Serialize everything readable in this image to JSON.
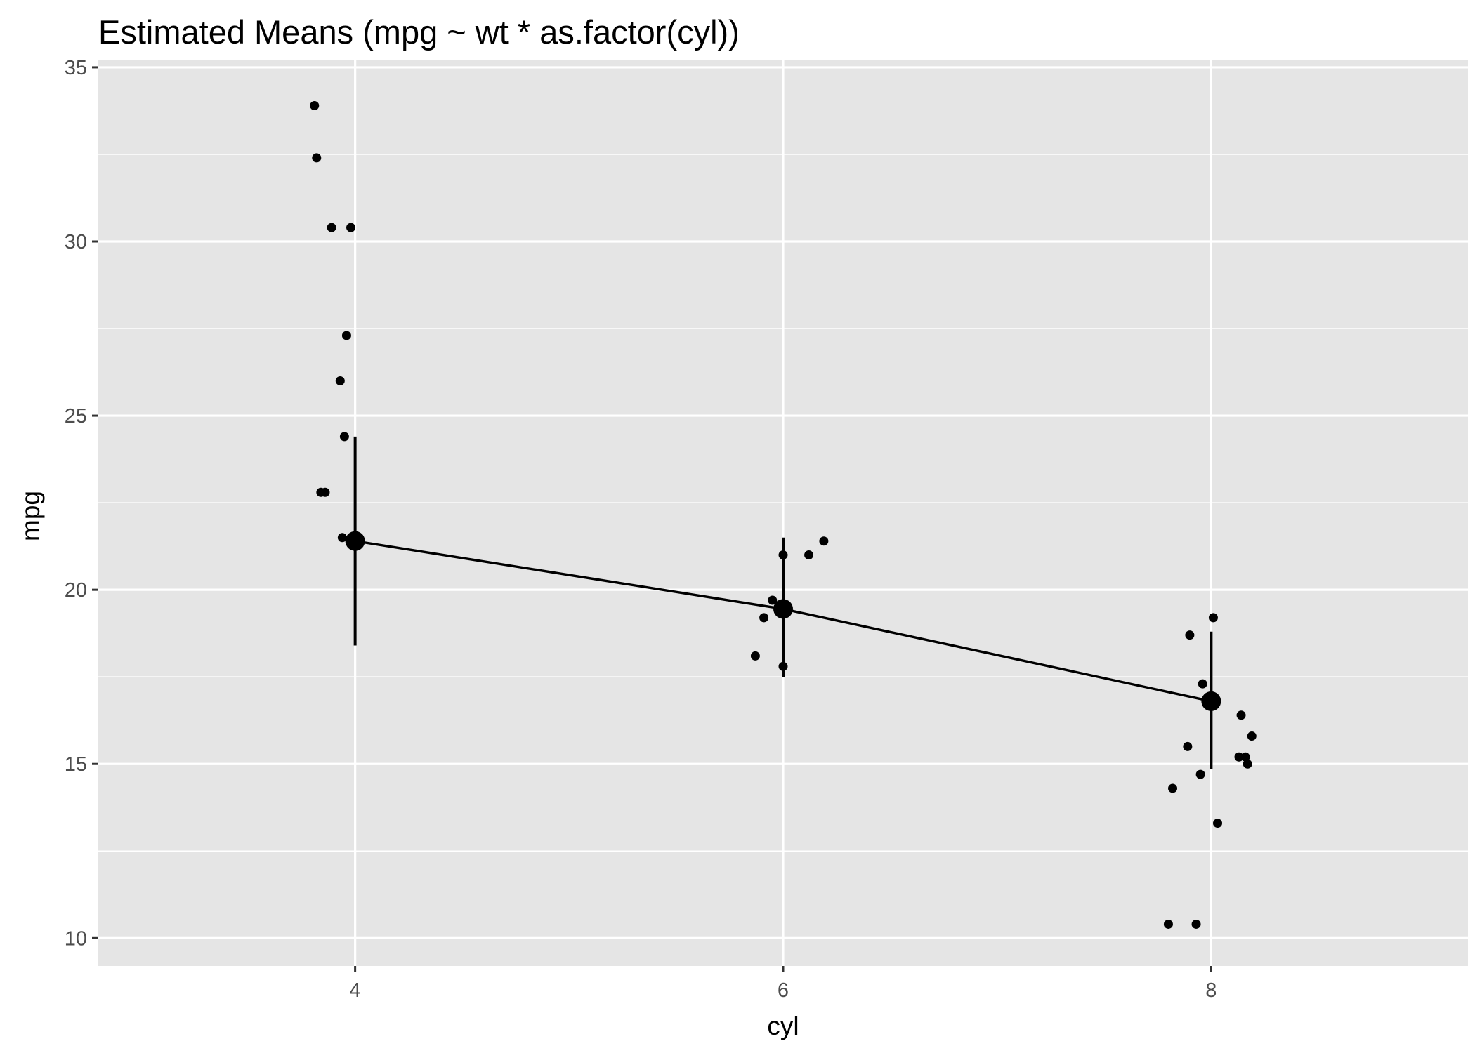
{
  "chart_data": {
    "type": "scatter",
    "title": "Estimated Means (mpg ~ wt * as.factor(cyl))",
    "xlabel": "cyl",
    "ylabel": "mpg",
    "xlim": [
      2.8,
      9.2
    ],
    "ylim": [
      9.2,
      35.2
    ],
    "x_ticks": [
      4,
      6,
      8
    ],
    "y_ticks": [
      10,
      15,
      20,
      25,
      30,
      35
    ],
    "grid": true,
    "points": [
      {
        "x": 3.81,
        "y": 33.9
      },
      {
        "x": 3.82,
        "y": 32.4
      },
      {
        "x": 3.89,
        "y": 30.4
      },
      {
        "x": 3.98,
        "y": 30.4
      },
      {
        "x": 3.96,
        "y": 27.3
      },
      {
        "x": 3.93,
        "y": 26.0
      },
      {
        "x": 3.95,
        "y": 24.4
      },
      {
        "x": 3.84,
        "y": 22.8
      },
      {
        "x": 3.86,
        "y": 22.8
      },
      {
        "x": 3.94,
        "y": 21.5
      },
      {
        "x": 4.0,
        "y": 21.4
      },
      {
        "x": 6.0,
        "y": 21.0
      },
      {
        "x": 6.12,
        "y": 21.0
      },
      {
        "x": 6.19,
        "y": 21.4
      },
      {
        "x": 5.95,
        "y": 19.7
      },
      {
        "x": 5.91,
        "y": 19.2
      },
      {
        "x": 5.87,
        "y": 18.1
      },
      {
        "x": 6.0,
        "y": 17.8
      },
      {
        "x": 8.01,
        "y": 19.2
      },
      {
        "x": 7.9,
        "y": 18.7
      },
      {
        "x": 7.96,
        "y": 17.3
      },
      {
        "x": 8.14,
        "y": 16.4
      },
      {
        "x": 8.19,
        "y": 15.8
      },
      {
        "x": 7.89,
        "y": 15.5
      },
      {
        "x": 8.13,
        "y": 15.2
      },
      {
        "x": 8.16,
        "y": 15.2
      },
      {
        "x": 8.17,
        "y": 15.0
      },
      {
        "x": 7.95,
        "y": 14.7
      },
      {
        "x": 7.82,
        "y": 14.3
      },
      {
        "x": 8.03,
        "y": 13.3
      },
      {
        "x": 7.8,
        "y": 10.4
      },
      {
        "x": 7.93,
        "y": 10.4
      }
    ],
    "means": [
      {
        "x": 4,
        "y": 21.4,
        "lower": 18.4,
        "upper": 24.4
      },
      {
        "x": 6,
        "y": 19.45,
        "lower": 17.5,
        "upper": 21.5
      },
      {
        "x": 8,
        "y": 16.8,
        "lower": 14.85,
        "upper": 18.8
      }
    ],
    "colors": {
      "panel": "#e5e5e5",
      "grid": "#ffffff",
      "marks": "#000000",
      "tick_text": "#4d4d4d"
    }
  }
}
